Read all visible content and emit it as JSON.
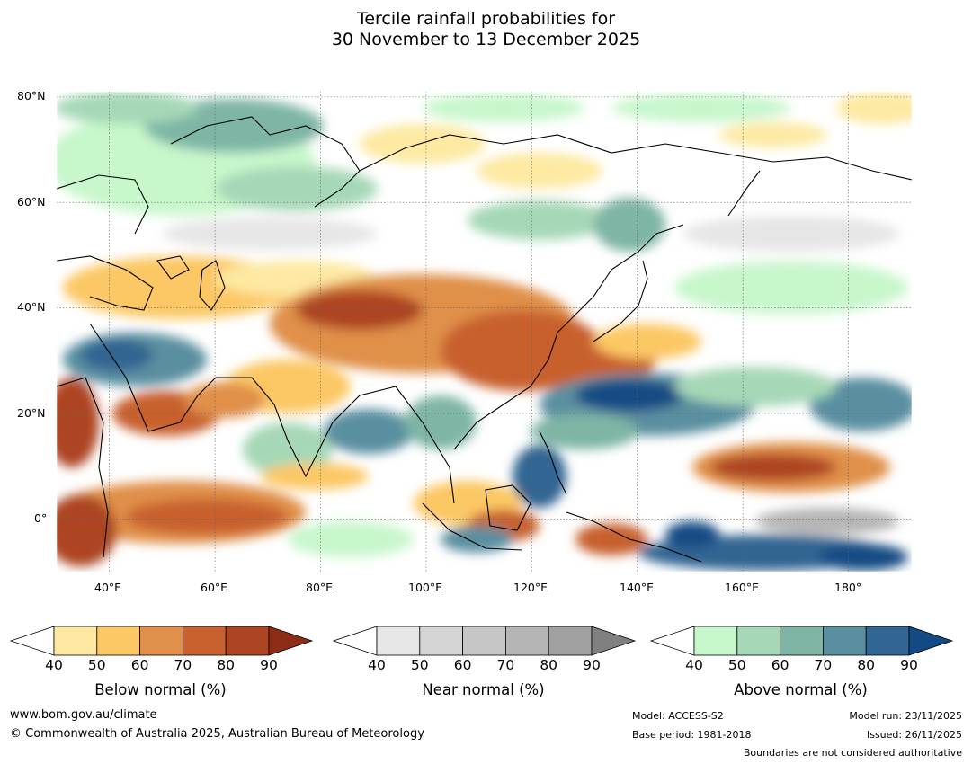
{
  "title": {
    "line1": "Tercile rainfall probabilities for",
    "line2": "30 November to 13 December 2025"
  },
  "map": {
    "lat_labels": [
      "80°N",
      "60°N",
      "40°N",
      "20°N",
      "0°"
    ],
    "lon_labels": [
      "40°E",
      "60°E",
      "80°E",
      "100°E",
      "120°E",
      "140°E",
      "160°E",
      "180°"
    ],
    "extent": {
      "lon_min": 30,
      "lon_max": 192,
      "lat_min": -10,
      "lat_max": 81
    }
  },
  "colorbars": [
    {
      "name": "below",
      "label": "Below normal (%)",
      "ticks": [
        "40",
        "50",
        "60",
        "70",
        "80",
        "90"
      ],
      "colors": [
        "#ffffff",
        "#fde9a2",
        "#fcc865",
        "#e0904a",
        "#c8612f",
        "#ad4424",
        "#8c2d18"
      ]
    },
    {
      "name": "near",
      "label": "Near normal (%)",
      "ticks": [
        "40",
        "50",
        "60",
        "70",
        "80",
        "90"
      ],
      "colors": [
        "#ffffff",
        "#e6e6e6",
        "#d5d5d5",
        "#c6c6c6",
        "#b5b5b5",
        "#a1a1a1",
        "#808080"
      ]
    },
    {
      "name": "above",
      "label": "Above normal (%)",
      "ticks": [
        "40",
        "50",
        "60",
        "70",
        "80",
        "90"
      ],
      "colors": [
        "#ffffff",
        "#c8f7cc",
        "#a6d8b7",
        "#7eb5a5",
        "#5a8fa0",
        "#336592",
        "#124b84"
      ]
    }
  ],
  "footer": {
    "website": "www.bom.gov.au/climate",
    "copyright": "© Commonwealth of Australia 2025, Australian Bureau of Meteorology",
    "model": "Model: ACCESS-S2",
    "base_period": "Base period: 1981-2018",
    "model_run": "Model run: 23/11/2025",
    "issued": "Issued: 26/11/2025",
    "disclaimer": "Boundaries are not considered authoritative"
  }
}
